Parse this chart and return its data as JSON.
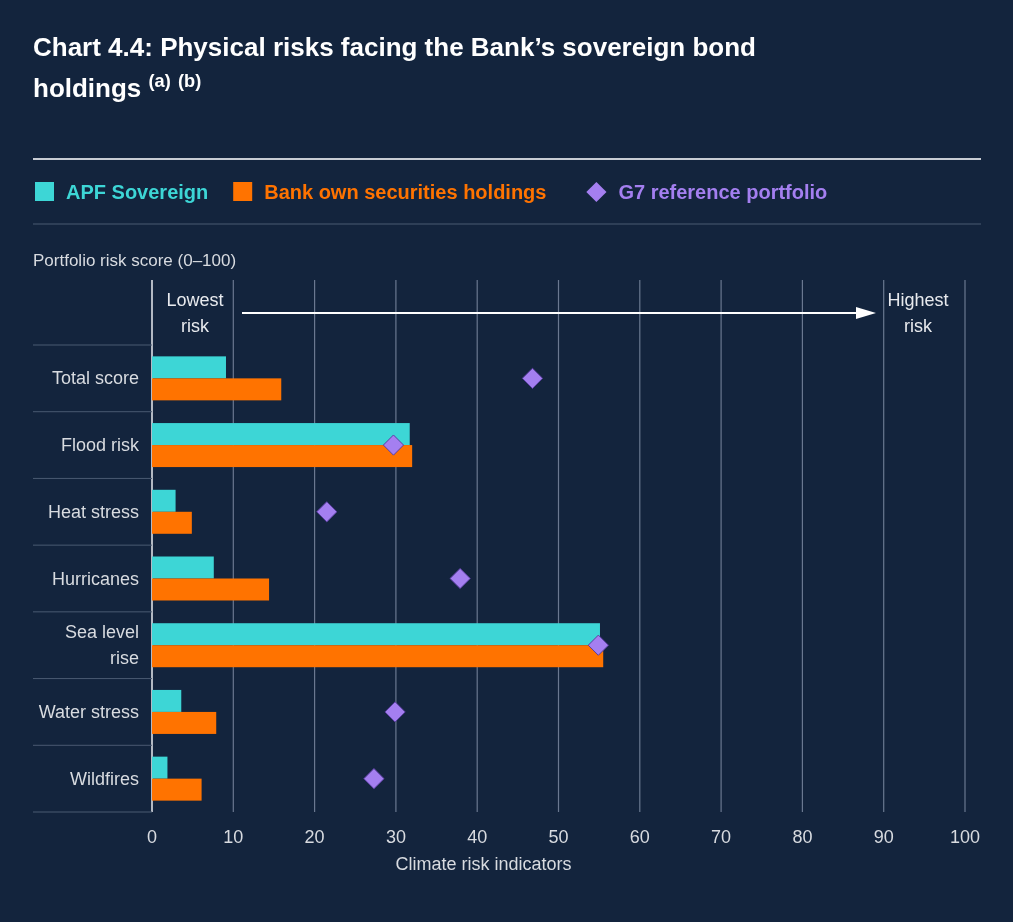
{
  "chart_data": {
    "type": "bar",
    "orientation": "horizontal",
    "title": "Chart 4.4: Physical risks facing the Bank’s sovereign bond holdings $^{(a)}$ $^{(b)}$",
    "xlabel": "Climate risk indicators",
    "ylabel": "Portfolio risk score (0–100)",
    "categories": [
      "Total score",
      "Flood risk",
      "Heat stress",
      "Hurricanes",
      "Sea level rise",
      "Water stress",
      "Wildfires"
    ],
    "series": [
      {
        "name": "APF Sovereign",
        "color": "#3dd6d6",
        "values": [
          9.1,
          31.7,
          2.9,
          7.6,
          55.1,
          3.6,
          1.9
        ]
      },
      {
        "name": "Bank own securities holdings",
        "color": "#ff7300",
        "values": [
          15.9,
          32.0,
          4.9,
          14.4,
          55.5,
          7.9,
          6.1
        ]
      },
      {
        "name": "G7 reference portfolio",
        "type": "scatter",
        "marker": "diamond",
        "color": "#a47ff0",
        "x": [
          "Total score",
          "Flood risk",
          "Heat stress",
          "Hurricanes",
          "Sea level rise",
          "Water stress",
          "Wildfires"
        ],
        "values": [
          46.8,
          29.7,
          21.5,
          37.9,
          54.9,
          29.9,
          27.3
        ]
      }
    ],
    "xlim": [
      0,
      100
    ],
    "xticks": [
      0,
      10,
      20,
      30,
      40,
      50,
      60,
      70,
      80,
      90,
      100
    ],
    "grid": "x",
    "legend": "top",
    "annotations": [
      "Lowest risk",
      "Highest risk"
    ]
  }
}
